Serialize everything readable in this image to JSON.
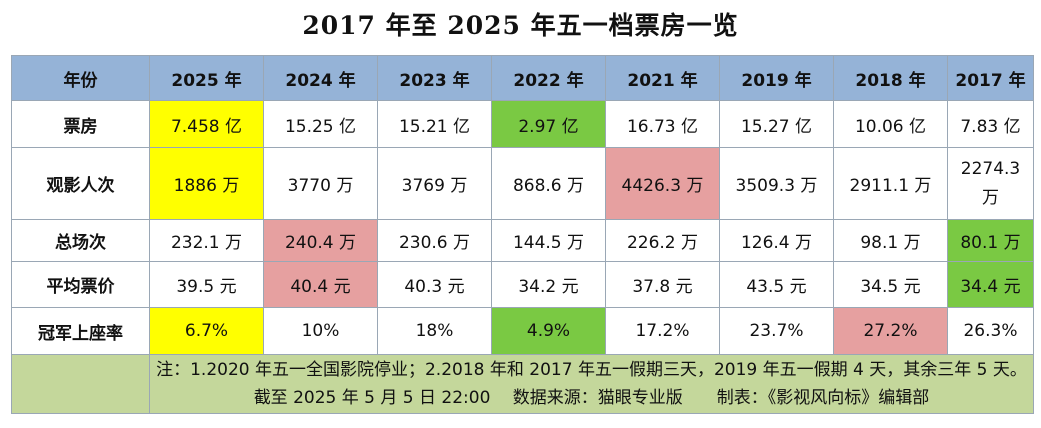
{
  "title": "2017 年至 2025 年五一档票房一览",
  "colors": {
    "header": "#95b3d7",
    "highlight_yellow": "#ffff00",
    "highlight_green": "#7ac943",
    "highlight_pink": "#e6a0a0",
    "note_bg": "#c4d79b"
  },
  "table": {
    "corner_label": "年份",
    "years": [
      "2025 年",
      "2024 年",
      "2023 年",
      "2022 年",
      "2021 年",
      "2019 年",
      "2018 年",
      "2017 年"
    ],
    "rows": [
      {
        "label": "票房",
        "values": [
          "7.458 亿",
          "15.25 亿",
          "15.21 亿",
          "2.97 亿",
          "16.73 亿",
          "15.27 亿",
          "10.06 亿",
          "7.83 亿"
        ],
        "highlights": [
          "yellow",
          "",
          "",
          "green",
          "",
          "",
          "",
          ""
        ]
      },
      {
        "label": "观影人次",
        "values": [
          "1886 万",
          "3770 万",
          "3769 万",
          "868.6 万",
          "4426.3 万",
          "3509.3 万",
          "2911.1 万",
          "2274.3 万"
        ],
        "highlights": [
          "yellow",
          "",
          "",
          "",
          "pink",
          "",
          "",
          ""
        ]
      },
      {
        "label": "总场次",
        "values": [
          "232.1 万",
          "240.4 万",
          "230.6 万",
          "144.5 万",
          "226.2 万",
          "126.4 万",
          "98.1 万",
          "80.1 万"
        ],
        "highlights": [
          "",
          "pink",
          "",
          "",
          "",
          "",
          "",
          "green"
        ]
      },
      {
        "label": "平均票价",
        "values": [
          "39.5 元",
          "40.4 元",
          "40.3 元",
          "34.2 元",
          "37.8 元",
          "43.5 元",
          "34.5 元",
          "34.4 元"
        ],
        "highlights": [
          "",
          "pink",
          "",
          "",
          "",
          "",
          "",
          "green"
        ]
      },
      {
        "label": "冠军上座率",
        "values": [
          "6.7%",
          "10%",
          "18%",
          "4.9%",
          "17.2%",
          "23.7%",
          "27.2%",
          "26.3%"
        ],
        "highlights": [
          "yellow",
          "",
          "",
          "green",
          "",
          "",
          "pink",
          ""
        ]
      }
    ]
  },
  "notes": {
    "line1": "注：1.2020 年五一全国影院停业；2.2018 年和 2017 年五一假期三天，2019 年五一假期 4 天，其余三年 5 天。",
    "line2": "截至 2025 年 5 月 5 日 22:00　 数据来源：猫眼专业版　　制表：《影视风向标》编辑部"
  }
}
